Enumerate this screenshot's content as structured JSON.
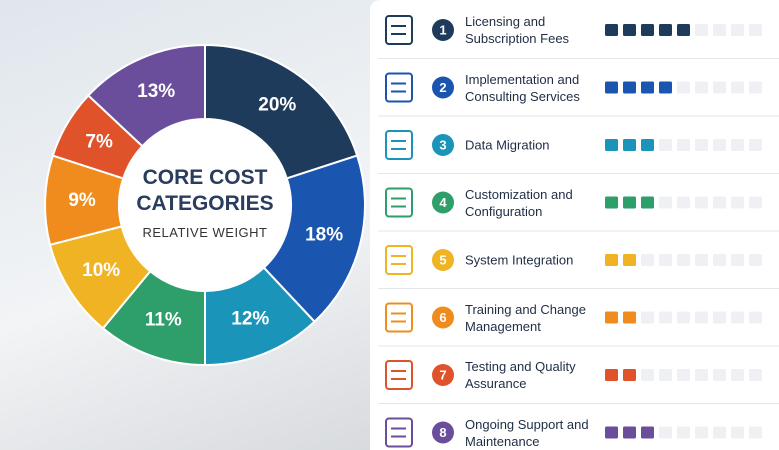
{
  "chart_data": {
    "type": "pie",
    "title": "CORE COST CATEGORIES",
    "subtitle": "RELATIVE WEIGHT",
    "categories": [
      "Licensing and Subscription Fees",
      "Implementation and Consulting Services",
      "Data Migration",
      "Customization and Configuration",
      "System Integration",
      "Training and Change Management",
      "Testing and Quality Assurance",
      "Ongoing Support and Maintenance"
    ],
    "item_numbers": [
      1,
      2,
      3,
      4,
      5,
      6,
      7,
      8
    ],
    "values": [
      20,
      18,
      12,
      11,
      10,
      9,
      7,
      13
    ],
    "value_labels": [
      "20%",
      "18%",
      "12%",
      "11%",
      "10%",
      "9%",
      "7%",
      "13%"
    ],
    "colors": [
      "#1f3b5c",
      "#1a56b0",
      "#1a94b8",
      "#2e9e6a",
      "#f0b323",
      "#f08c1e",
      "#e0522a",
      "#6b4e9b"
    ],
    "ratings": {
      "values": [
        5,
        4,
        3,
        3,
        2,
        2,
        2,
        3
      ],
      "max": 9
    }
  }
}
